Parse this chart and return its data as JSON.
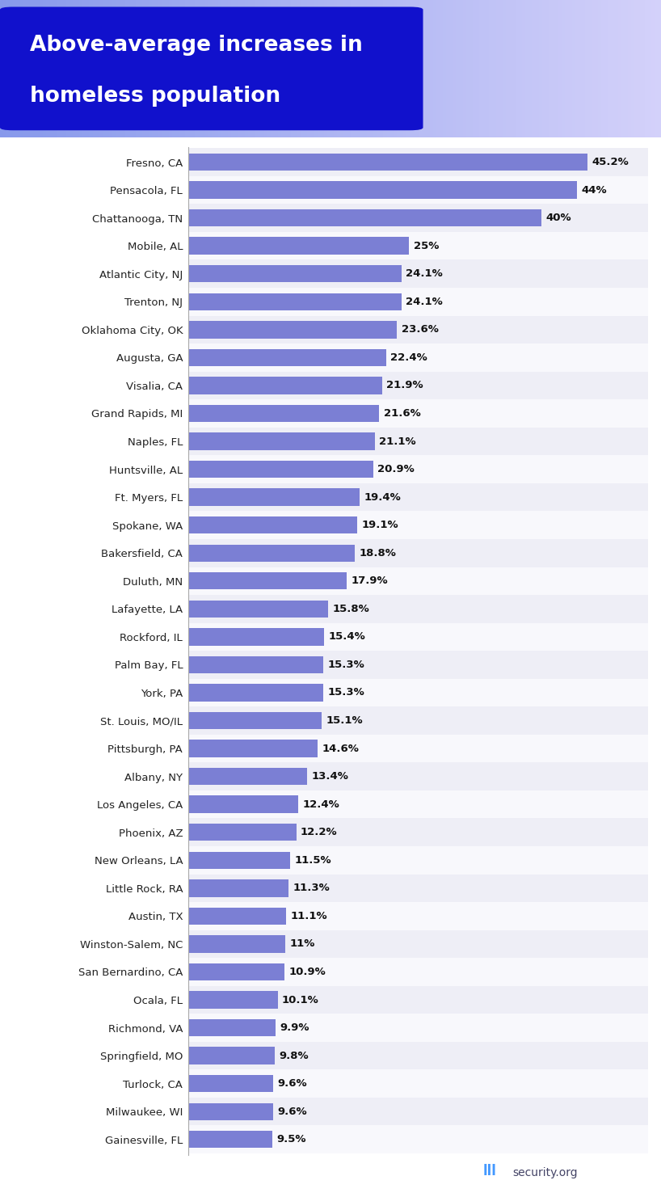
{
  "title_line1": "Above-average increases in",
  "title_line2": "homeless population",
  "categories": [
    "Fresno, CA",
    "Pensacola, FL",
    "Chattanooga, TN",
    "Mobile, AL",
    "Atlantic City, NJ",
    "Trenton, NJ",
    "Oklahoma City, OK",
    "Augusta, GA",
    "Visalia, CA",
    "Grand Rapids, MI",
    "Naples, FL",
    "Huntsville, AL",
    "Ft. Myers, FL",
    "Spokane, WA",
    "Bakersfield, CA",
    "Duluth, MN",
    "Lafayette, LA",
    "Rockford, IL",
    "Palm Bay, FL",
    "York, PA",
    "St. Louis, MO/IL",
    "Pittsburgh, PA",
    "Albany, NY",
    "Los Angeles, CA",
    "Phoenix, AZ",
    "New Orleans, LA",
    "Little Rock, RA",
    "Austin, TX",
    "Winston-Salem, NC",
    "San Bernardino, CA",
    "Ocala, FL",
    "Richmond, VA",
    "Springfield, MO",
    "Turlock, CA",
    "Milwaukee, WI",
    "Gainesville, FL"
  ],
  "values": [
    45.2,
    44.0,
    40.0,
    25.0,
    24.1,
    24.1,
    23.6,
    22.4,
    21.9,
    21.6,
    21.1,
    20.9,
    19.4,
    19.1,
    18.8,
    17.9,
    15.8,
    15.4,
    15.3,
    15.3,
    15.1,
    14.6,
    13.4,
    12.4,
    12.2,
    11.5,
    11.3,
    11.1,
    11.0,
    10.9,
    10.1,
    9.9,
    9.8,
    9.6,
    9.6,
    9.5
  ],
  "labels": [
    "45.2%",
    "44%",
    "40%",
    "25%",
    "24.1%",
    "24.1%",
    "23.6%",
    "22.4%",
    "21.9%",
    "21.6%",
    "21.1%",
    "20.9%",
    "19.4%",
    "19.1%",
    "18.8%",
    "17.9%",
    "15.8%",
    "15.4%",
    "15.3%",
    "15.3%",
    "15.1%",
    "14.6%",
    "13.4%",
    "12.4%",
    "12.2%",
    "11.5%",
    "11.3%",
    "11.1%",
    "11%",
    "10.9%",
    "10.1%",
    "9.9%",
    "9.8%",
    "9.6%",
    "9.6%",
    "9.5%"
  ],
  "bar_color": "#7B7FD4",
  "bg_color": "#ffffff",
  "header_bg_left": "#8899ee",
  "header_bg_right": "#bbccff",
  "title_box_color": "#1111cc",
  "title_text_color": "#ffffff",
  "label_color": "#111111",
  "row_color_odd": "#eeeef6",
  "row_color_even": "#f8f8fc",
  "watermark_text": "security.org",
  "xlim_max": 52
}
